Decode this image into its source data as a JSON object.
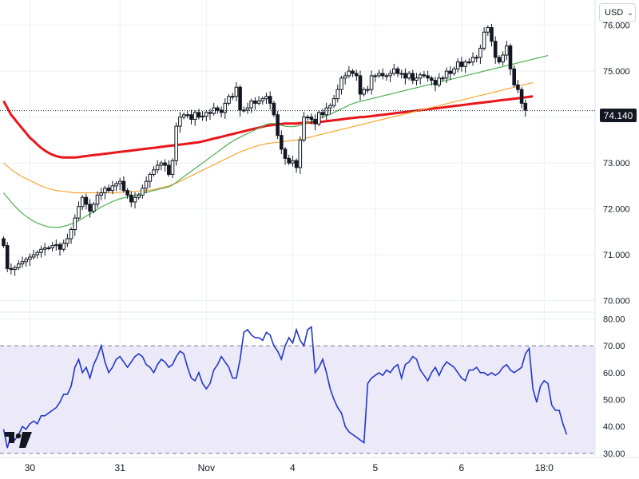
{
  "currency": {
    "label": "USD",
    "chevron": "chevron-down-icon"
  },
  "last_price_label": "74.140",
  "logo_icon": "tradingview-logo-icon",
  "colors": {
    "candle_outline": "#131722",
    "ma_200": "#e8161a",
    "ma_100": "#f7a531",
    "ma_50": "#4caf50",
    "rsi_line": "#2337c8",
    "rsi_band_fill": "#ece9f9",
    "grid": "#eceef1"
  },
  "chart_data": [
    {
      "type": "candlestick",
      "name": "price",
      "y_ticks": [
        "76.000",
        "75.000",
        "74.000",
        "73.000",
        "72.000",
        "71.000",
        "70.000"
      ],
      "y_tick_values": [
        76,
        75,
        74,
        73,
        72,
        71,
        70
      ],
      "ylim": [
        69.75,
        76.55
      ],
      "x_tick_labels": [
        "30",
        "31",
        "Nov",
        "4",
        "5",
        "6",
        "18:0"
      ],
      "x_tick_index": [
        7,
        31,
        54,
        77,
        99,
        122,
        144
      ],
      "last_price": 74.14,
      "series": [
        {
          "name": "",
          "kind": "close",
          "values": [
            71.2,
            70.7,
            70.68,
            70.72,
            70.8,
            70.85,
            70.9,
            70.95,
            71.0,
            71.05,
            71.12,
            71.15,
            71.15,
            71.2,
            71.22,
            71.12,
            71.25,
            71.35,
            71.55,
            71.8,
            72.05,
            72.25,
            72.1,
            71.95,
            72.1,
            72.3,
            72.35,
            72.45,
            72.4,
            72.5,
            72.55,
            72.6,
            72.4,
            72.3,
            72.15,
            72.25,
            72.3,
            72.45,
            72.6,
            72.75,
            72.85,
            72.95,
            73.0,
            72.95,
            72.75,
            73.05,
            73.8,
            74.0,
            74.05,
            74.05,
            73.95,
            74.1,
            74.0,
            74.02,
            74.1,
            74.08,
            74.2,
            74.15,
            74.1,
            74.3,
            74.45,
            74.45,
            74.65,
            74.15,
            74.15,
            74.2,
            74.35,
            74.3,
            74.35,
            74.4,
            74.45,
            74.3,
            74.05,
            73.6,
            73.3,
            73.1,
            73.0,
            73.05,
            72.9,
            73.5,
            74.0,
            74.0,
            73.95,
            73.85,
            74.1,
            74.05,
            74.2,
            74.25,
            74.4,
            74.6,
            74.85,
            74.9,
            75.0,
            74.95,
            74.9,
            74.5,
            74.6,
            74.6,
            74.9,
            74.9,
            74.95,
            74.9,
            74.9,
            74.95,
            75.05,
            74.95,
            74.95,
            74.85,
            74.95,
            74.8,
            74.85,
            74.92,
            74.9,
            74.85,
            74.8,
            74.7,
            74.85,
            74.85,
            75.0,
            74.95,
            75.05,
            75.2,
            75.1,
            75.2,
            75.2,
            75.3,
            75.3,
            75.5,
            75.85,
            75.95,
            75.65,
            75.3,
            75.2,
            75.35,
            75.55,
            75.05,
            74.7,
            74.6,
            74.3,
            74.15
          ]
        },
        {
          "name": "",
          "kind": "moving-average",
          "values": [
            74.35,
            74.2,
            74.05,
            73.95,
            73.85,
            73.75,
            73.65,
            73.55,
            73.48,
            73.4,
            73.33,
            73.27,
            73.22,
            73.18,
            73.15,
            73.13,
            73.12,
            73.12,
            73.12,
            73.12,
            73.13,
            73.14,
            73.15,
            73.16,
            73.17,
            73.18,
            73.19,
            73.2,
            73.21,
            73.22,
            73.23,
            73.24,
            73.25,
            73.26,
            73.27,
            73.28,
            73.29,
            73.3,
            73.31,
            73.32,
            73.33,
            73.34,
            73.35,
            73.36,
            73.37,
            73.38,
            73.39,
            73.4,
            73.41,
            73.42,
            73.43,
            73.44,
            73.45,
            73.47,
            73.49,
            73.51,
            73.53,
            73.55,
            73.57,
            73.59,
            73.61,
            73.63,
            73.65,
            73.67,
            73.69,
            73.71,
            73.73,
            73.75,
            73.77,
            73.79,
            73.81,
            73.82,
            73.83,
            73.84,
            73.85,
            73.86,
            73.86,
            73.86,
            73.86,
            73.87,
            73.87,
            73.88,
            73.88,
            73.89,
            73.89,
            73.9,
            73.91,
            73.92,
            73.93,
            73.94,
            73.95,
            73.96,
            73.97,
            73.98,
            73.99,
            74.0,
            74.0,
            74.01,
            74.02,
            74.03,
            74.04,
            74.05,
            74.06,
            74.07,
            74.08,
            74.09,
            74.1,
            74.11,
            74.12,
            74.13,
            74.14,
            74.15,
            74.16,
            74.17,
            74.18,
            74.19,
            74.2,
            74.21,
            74.22,
            74.23,
            74.24,
            74.25,
            74.26,
            74.27,
            74.28,
            74.29,
            74.3,
            74.31,
            74.32,
            74.33,
            74.34,
            74.35,
            74.36,
            74.37,
            74.38,
            74.39,
            74.4,
            74.41,
            74.42,
            74.43,
            74.44,
            74.45
          ]
        },
        {
          "name": "",
          "kind": "moving-average",
          "values": [
            73.0,
            72.93,
            72.86,
            72.8,
            72.75,
            72.7,
            72.66,
            72.62,
            72.58,
            72.54,
            72.5,
            72.47,
            72.44,
            72.42,
            72.4,
            72.39,
            72.38,
            72.37,
            72.36,
            72.35,
            72.35,
            72.35,
            72.35,
            72.35,
            72.35,
            72.35,
            72.35,
            72.35,
            72.35,
            72.35,
            72.35,
            72.36,
            72.37,
            72.37,
            72.38,
            72.38,
            72.39,
            72.39,
            72.4,
            72.41,
            72.42,
            72.44,
            72.46,
            72.48,
            72.5,
            72.53,
            72.56,
            72.6,
            72.64,
            72.68,
            72.72,
            72.76,
            72.8,
            72.84,
            72.88,
            72.92,
            72.96,
            73.0,
            73.04,
            73.08,
            73.12,
            73.16,
            73.2,
            73.24,
            73.27,
            73.3,
            73.33,
            73.36,
            73.38,
            73.4,
            73.42,
            73.43,
            73.44,
            73.45,
            73.46,
            73.47,
            73.48,
            73.49,
            73.5,
            73.51,
            73.53,
            73.55,
            73.57,
            73.59,
            73.61,
            73.63,
            73.65,
            73.67,
            73.69,
            73.71,
            73.73,
            73.75,
            73.77,
            73.79,
            73.81,
            73.83,
            73.85,
            73.87,
            73.89,
            73.91,
            73.93,
            73.95,
            73.97,
            73.99,
            74.01,
            74.03,
            74.05,
            74.07,
            74.09,
            74.11,
            74.13,
            74.15,
            74.17,
            74.19,
            74.21,
            74.23,
            74.25,
            74.27,
            74.29,
            74.31,
            74.33,
            74.35,
            74.37,
            74.39,
            74.41,
            74.43,
            74.45,
            74.47,
            74.49,
            74.51,
            74.53,
            74.55,
            74.57,
            74.59,
            74.61,
            74.63,
            74.65,
            74.67,
            74.69,
            74.71,
            74.73,
            74.75
          ]
        },
        {
          "name": "",
          "kind": "moving-average",
          "values": [
            72.35,
            72.25,
            72.15,
            72.06,
            71.98,
            71.9,
            71.84,
            71.78,
            71.73,
            71.69,
            71.66,
            71.63,
            71.61,
            71.6,
            71.6,
            71.6,
            71.62,
            71.64,
            71.67,
            71.7,
            71.74,
            71.79,
            71.84,
            71.89,
            71.94,
            71.99,
            72.04,
            72.08,
            72.12,
            72.16,
            72.19,
            72.22,
            72.24,
            72.26,
            72.28,
            72.3,
            72.32,
            72.34,
            72.36,
            72.38,
            72.4,
            72.42,
            72.44,
            72.46,
            72.48,
            72.52,
            72.58,
            72.64,
            72.7,
            72.76,
            72.82,
            72.88,
            72.94,
            73.0,
            73.06,
            73.12,
            73.18,
            73.24,
            73.3,
            73.36,
            73.42,
            73.47,
            73.52,
            73.56,
            73.6,
            73.64,
            73.68,
            73.72,
            73.76,
            73.8,
            73.84,
            73.86,
            73.86,
            73.84,
            73.82,
            73.8,
            73.79,
            73.79,
            73.8,
            73.82,
            73.85,
            73.88,
            73.91,
            73.94,
            73.97,
            74.0,
            74.03,
            74.06,
            74.1,
            74.14,
            74.18,
            74.22,
            74.26,
            74.29,
            74.32,
            74.34,
            74.36,
            74.38,
            74.4,
            74.42,
            74.44,
            74.46,
            74.48,
            74.5,
            74.52,
            74.54,
            74.56,
            74.58,
            74.6,
            74.62,
            74.64,
            74.66,
            74.68,
            74.7,
            74.72,
            74.74,
            74.76,
            74.78,
            74.8,
            74.82,
            74.84,
            74.86,
            74.88,
            74.9,
            74.92,
            74.94,
            74.96,
            74.98,
            75.0,
            75.02,
            75.04,
            75.06,
            75.08,
            75.1,
            75.12,
            75.14,
            75.16,
            75.18,
            75.2,
            75.22,
            75.24,
            75.26,
            75.28,
            75.3,
            75.32,
            75.34
          ]
        }
      ]
    },
    {
      "type": "line",
      "name": "rsi",
      "y_ticks": [
        "80.00",
        "70.00",
        "60.00",
        "50.00",
        "40.00",
        "30.00"
      ],
      "y_tick_values": [
        80,
        70,
        60,
        50,
        40,
        30
      ],
      "ylim": [
        28.5,
        82.5
      ],
      "band": [
        30,
        70
      ],
      "values": [
        39,
        32,
        37,
        35,
        37,
        40,
        39,
        41,
        42,
        41,
        44,
        44,
        45,
        46,
        47,
        49,
        52,
        52,
        55,
        62,
        65,
        60,
        62,
        58,
        63,
        66,
        70,
        64,
        60,
        62,
        65,
        66,
        64,
        62,
        64,
        66,
        67,
        66,
        63,
        62,
        60,
        63,
        65,
        64,
        62,
        63,
        66,
        68,
        67,
        62,
        58,
        57,
        60,
        56,
        54,
        56,
        61,
        63,
        66,
        64,
        62,
        58,
        58,
        65,
        75,
        76,
        74,
        73,
        73,
        72,
        75,
        74,
        70,
        68,
        65,
        70,
        73,
        71,
        76,
        72,
        70,
        76,
        77,
        60,
        62,
        65,
        60,
        54,
        50,
        47,
        45,
        40,
        38,
        37,
        36,
        35,
        34,
        56,
        58,
        59,
        60,
        59,
        61,
        60,
        62,
        63,
        58,
        63,
        64,
        66,
        65,
        61,
        59,
        57,
        60,
        62,
        59,
        62,
        64,
        63,
        62,
        60,
        58,
        57,
        61,
        61,
        62,
        60,
        60,
        59,
        60,
        59,
        60,
        62,
        63,
        61,
        60,
        61,
        62,
        67,
        69,
        54,
        49,
        55,
        57,
        56,
        48,
        46,
        46,
        41,
        37
      ]
    }
  ]
}
